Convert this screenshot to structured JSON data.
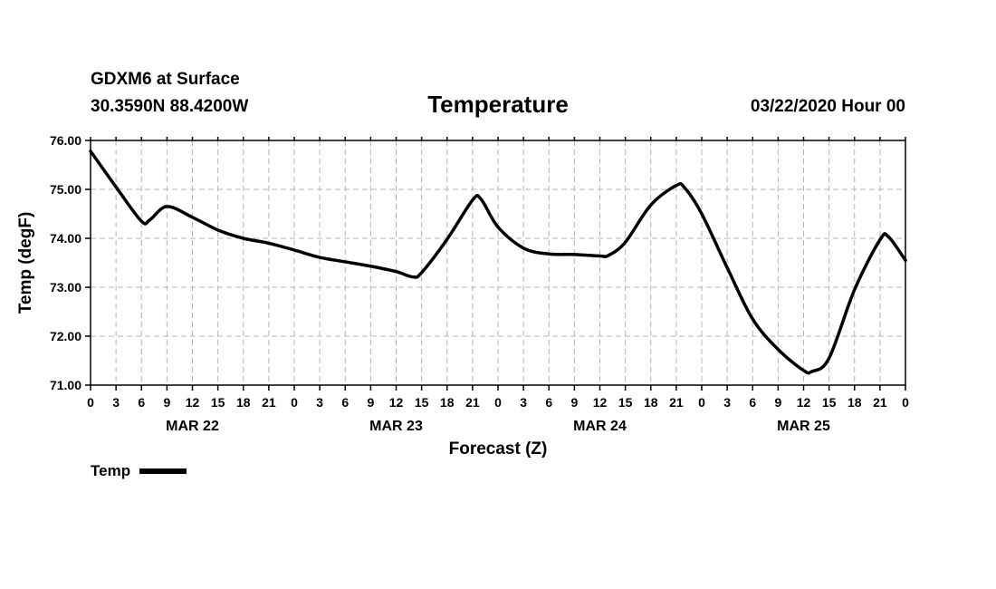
{
  "header": {
    "station": "GDXM6 at Surface",
    "coords": "30.3590N 88.4200W",
    "title": "Temperature",
    "run": "03/22/2020 Hour 00"
  },
  "colors": {
    "line": "#000000",
    "grid": "#b4b4b4",
    "background": "#ffffff"
  },
  "chart_data": {
    "type": "line",
    "title": "Temperature",
    "xlabel": "Forecast (Z)",
    "ylabel": "Temp (degF)",
    "grid": true,
    "legend_position": "bottom-left",
    "xlim": [
      0,
      96
    ],
    "ylim": [
      71.0,
      76.0
    ],
    "x_unit": "hours from 03/22/2020 00Z",
    "yticks": [
      "71.00",
      "72.00",
      "73.00",
      "74.00",
      "75.00",
      "76.00"
    ],
    "xticks": [
      {
        "x": 0,
        "label": "0"
      },
      {
        "x": 3,
        "label": "3"
      },
      {
        "x": 6,
        "label": "6"
      },
      {
        "x": 9,
        "label": "9"
      },
      {
        "x": 12,
        "label": "12"
      },
      {
        "x": 15,
        "label": "15"
      },
      {
        "x": 18,
        "label": "18"
      },
      {
        "x": 21,
        "label": "21"
      },
      {
        "x": 24,
        "label": "0"
      },
      {
        "x": 27,
        "label": "3"
      },
      {
        "x": 30,
        "label": "6"
      },
      {
        "x": 33,
        "label": "9"
      },
      {
        "x": 36,
        "label": "12"
      },
      {
        "x": 39,
        "label": "15"
      },
      {
        "x": 42,
        "label": "18"
      },
      {
        "x": 45,
        "label": "21"
      },
      {
        "x": 48,
        "label": "0"
      },
      {
        "x": 51,
        "label": "3"
      },
      {
        "x": 54,
        "label": "6"
      },
      {
        "x": 57,
        "label": "9"
      },
      {
        "x": 60,
        "label": "12"
      },
      {
        "x": 63,
        "label": "15"
      },
      {
        "x": 66,
        "label": "18"
      },
      {
        "x": 69,
        "label": "21"
      },
      {
        "x": 72,
        "label": "0"
      },
      {
        "x": 75,
        "label": "3"
      },
      {
        "x": 78,
        "label": "6"
      },
      {
        "x": 81,
        "label": "9"
      },
      {
        "x": 84,
        "label": "12"
      },
      {
        "x": 87,
        "label": "15"
      },
      {
        "x": 90,
        "label": "18"
      },
      {
        "x": 93,
        "label": "21"
      },
      {
        "x": 96,
        "label": "0"
      }
    ],
    "date_labels": [
      {
        "x": 12,
        "label": "MAR 22"
      },
      {
        "x": 36,
        "label": "MAR 23"
      },
      {
        "x": 60,
        "label": "MAR 24"
      },
      {
        "x": 84,
        "label": "MAR 25"
      }
    ],
    "series": [
      {
        "name": "Temp",
        "x": [
          0,
          3,
          6,
          7,
          9,
          12,
          15,
          18,
          21,
          24,
          27,
          30,
          33,
          36,
          38,
          39,
          42,
          45,
          46,
          48,
          51,
          54,
          57,
          60,
          61,
          63,
          66,
          69,
          70,
          72,
          75,
          78,
          81,
          84,
          85,
          87,
          90,
          93,
          94,
          96
        ],
        "y": [
          75.78,
          75.05,
          74.35,
          74.38,
          74.65,
          74.43,
          74.17,
          74.0,
          73.9,
          73.76,
          73.61,
          73.52,
          73.43,
          73.32,
          73.21,
          73.3,
          73.98,
          74.78,
          74.8,
          74.23,
          73.8,
          73.68,
          73.67,
          73.64,
          73.65,
          73.92,
          74.68,
          75.08,
          75.03,
          74.5,
          73.4,
          72.35,
          71.73,
          71.3,
          71.28,
          71.55,
          72.95,
          73.97,
          74.03,
          73.55
        ]
      }
    ]
  }
}
